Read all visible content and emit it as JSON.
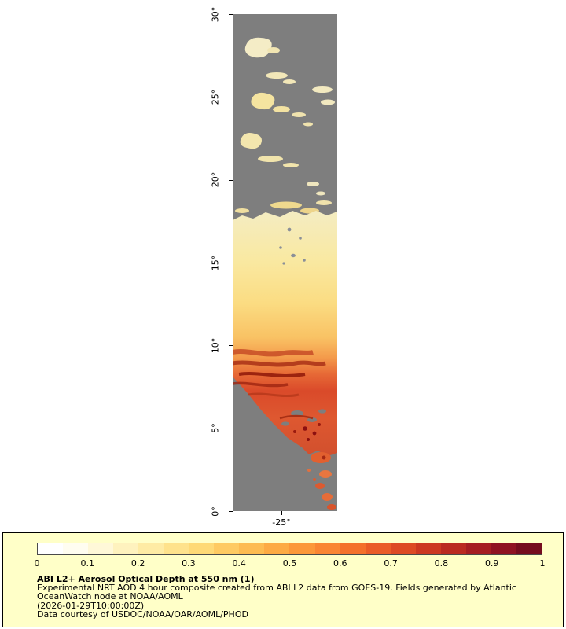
{
  "colors": {
    "page_background": "#ffffff",
    "no_data_gray": "#7e7e7e",
    "legend_background": "#ffffc8",
    "legend_border": "#000000",
    "plume_low": "#f4ecc2",
    "plume_mid": "#f9c264",
    "plume_high": "#da4a2a",
    "plume_extreme": "#8c1010"
  },
  "map": {
    "lat_tick_labels": [
      "30°",
      "25°",
      "20°",
      "15°",
      "10°",
      "5°",
      "0°"
    ],
    "lon_tick_label": "-25°"
  },
  "legend": {
    "tick_labels": [
      "0",
      "0.1",
      "0.2",
      "0.3",
      "0.4",
      "0.5",
      "0.6",
      "0.7",
      "0.8",
      "0.9",
      "1"
    ],
    "colorbar_colors": [
      "#FFFFFF",
      "#FFFDF0",
      "#FFF8D8",
      "#FEF2BE",
      "#FEEBA4",
      "#FEE28C",
      "#FED976",
      "#FECA62",
      "#FDBB51",
      "#FDAA44",
      "#FC9739",
      "#FA8532",
      "#F4702B",
      "#EA5C27",
      "#DD4A24",
      "#CC3822",
      "#BA2A21",
      "#A51D22",
      "#8F1222",
      "#750C1E"
    ],
    "title": "ABI L2+ Aerosol Optical Depth at 550 nm (1)",
    "description_line1": "Experimental NRT AOD 4 hour composite created from ABI L2 data from GOES-19. Fields generated by Atlantic",
    "description_line2": "OceanWatch node at NOAA/AOML",
    "timestamp": "(2026-01-29T10:00:00Z)",
    "credit": "Data courtesy of USDOC/NOAA/OAR/AOML/PHOD"
  }
}
